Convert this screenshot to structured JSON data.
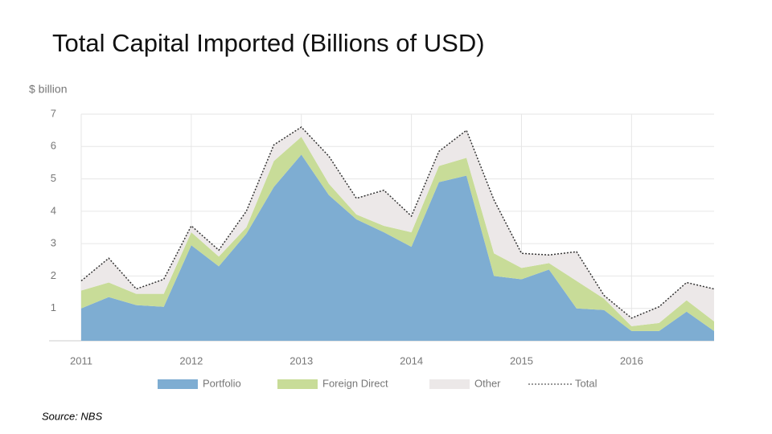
{
  "chart_data": {
    "type": "stacked-area",
    "title": "Total Capital Imported (Billions of USD)",
    "y_label": "$ billion",
    "source": "Source: NBS",
    "x": [
      2011,
      2011.25,
      2011.5,
      2011.75,
      2012,
      2012.25,
      2012.5,
      2012.75,
      2013,
      2013.25,
      2013.5,
      2013.75,
      2014,
      2014.25,
      2014.5,
      2014.75,
      2015,
      2015.25,
      2015.5,
      2015.75,
      2016,
      2016.25,
      2016.5,
      2016.75
    ],
    "series": [
      {
        "name": "Portfolio",
        "color": "#7eadd2",
        "kind": "area",
        "values": [
          1.0,
          1.35,
          1.1,
          1.05,
          2.95,
          2.3,
          3.3,
          4.75,
          5.75,
          4.5,
          3.75,
          3.35,
          2.9,
          4.9,
          5.1,
          2.0,
          1.9,
          2.2,
          1.0,
          0.95,
          0.3,
          0.3,
          0.9,
          0.3
        ]
      },
      {
        "name": "Foreign Direct",
        "color": "#c8dc98",
        "kind": "area",
        "values": [
          0.55,
          0.45,
          0.35,
          0.4,
          0.4,
          0.3,
          0.2,
          0.8,
          0.55,
          0.35,
          0.15,
          0.2,
          0.45,
          0.5,
          0.55,
          0.7,
          0.35,
          0.2,
          0.85,
          0.35,
          0.15,
          0.25,
          0.35,
          0.3
        ]
      },
      {
        "name": "Other",
        "color": "#ece8e8",
        "kind": "area",
        "values": [
          0.3,
          0.75,
          0.15,
          0.45,
          0.2,
          0.2,
          0.5,
          0.5,
          0.3,
          0.85,
          0.5,
          1.1,
          0.5,
          0.45,
          0.85,
          1.65,
          0.45,
          0.25,
          0.9,
          0.1,
          0.25,
          0.5,
          0.55,
          1.0
        ]
      },
      {
        "name": "Total",
        "color": "#333333",
        "kind": "dashed-line",
        "values": [
          1.85,
          2.55,
          1.6,
          1.9,
          3.55,
          2.8,
          4.0,
          6.05,
          6.6,
          5.7,
          4.4,
          4.65,
          3.85,
          5.85,
          6.5,
          4.35,
          2.7,
          2.65,
          2.75,
          1.4,
          0.7,
          1.05,
          1.8,
          1.6
        ]
      }
    ],
    "xlim": [
      2011,
      2016.75
    ],
    "xticks": [
      2011,
      2012,
      2013,
      2014,
      2015,
      2016
    ],
    "ylim": [
      0,
      7
    ],
    "yticks": [
      1,
      2,
      3,
      4,
      5,
      6,
      7
    ],
    "grid": true
  }
}
